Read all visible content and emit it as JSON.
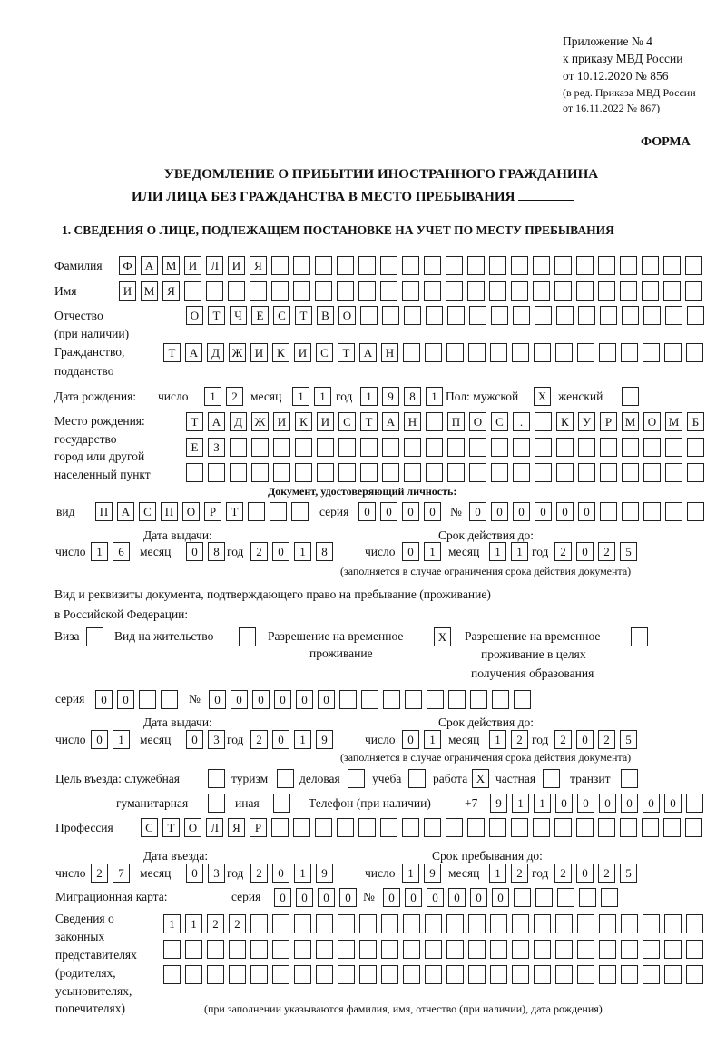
{
  "header": {
    "appendix": "Приложение № 4",
    "order_line1": "к приказу МВД России",
    "order_line2": "от 10.12.2020 № 856",
    "edition_line1": "(в ред. Приказа МВД России",
    "edition_line2": "от 16.11.2022 № 867)",
    "form_label": "ФОРМА",
    "title_line1": "УВЕДОМЛЕНИЕ О ПРИБЫТИИ ИНОСТРАННОГО ГРАЖДАНИНА",
    "title_line2": "ИЛИ ЛИЦА БЕЗ ГРАЖДАНСТВА В МЕСТО ПРЕБЫВАНИЯ",
    "section1": "1. СВЕДЕНИЯ О ЛИЦЕ, ПОДЛЕЖАЩЕМ ПОСТАНОВКЕ НА УЧЕТ ПО МЕСТУ ПРЕБЫВАНИЯ"
  },
  "labels": {
    "surname": "Фамилия",
    "name": "Имя",
    "patronymic": "Отчество",
    "patronymic_note": "(при наличии)",
    "citizenship1": "Гражданство,",
    "citizenship2": "подданство",
    "birth_date": "Дата рождения:",
    "day": "число",
    "month": "месяц",
    "year": "год",
    "sex": "Пол: мужской",
    "female": "женский",
    "birthplace1": "Место рождения:",
    "birthplace2": "государство",
    "birthplace3": "город или другой",
    "birthplace4": "населенный пункт",
    "id_doc": "Документ, удостоверяющий личность:",
    "kind": "вид",
    "series": "серия",
    "number": "№",
    "issue_date": "Дата выдачи:",
    "valid_until": "Срок действия до:",
    "valid_note": "(заполняется в случае ограничения срока действия документа)",
    "stay_doc1": "Вид и реквизиты документа, подтверждающего право на пребывание (проживание)",
    "stay_doc2": "в Российской Федерации:",
    "visa": "Виза",
    "residence": "Вид на жительство",
    "trp1": "Разрешение на временное",
    "trp2": "проживание",
    "trp_edu1": "Разрешение на временное",
    "trp_edu2": "проживание в целях",
    "trp_edu3": "получения образования",
    "purpose": "Цель въезда: служебная",
    "tourism": "туризм",
    "business": "деловая",
    "study": "учеба",
    "work": "работа",
    "private": "частная",
    "transit": "транзит",
    "humanitarian": "гуманитарная",
    "other": "иная",
    "phone": "Телефон (при наличии)",
    "phone_prefix": "+7",
    "profession": "Профессия",
    "entry_date": "Дата въезда:",
    "stay_until": "Срок пребывания до:",
    "migration_card": "Миграционная карта:",
    "reps1": "Сведения о",
    "reps2": "законных",
    "reps3": "представителях",
    "reps4": "(родителях,",
    "reps5": "усыновителях,",
    "reps6": "попечителях)",
    "reps_note": "(при заполнении указываются фамилия, имя, отчество (при наличии), дата рождения)"
  },
  "fields": {
    "surname": "ФАМИЛИЯ",
    "name": "ИМЯ",
    "patronymic": "ОТЧЕСТВО",
    "citizenship": "ТАДЖИКИСТАН",
    "birth_day": "12",
    "birth_month": "11",
    "birth_year": "1981",
    "sex_male": "X",
    "sex_female": "",
    "birthplace_row1": "ТАДЖИКИСТАН ПОС. КУРМОМБ",
    "birthplace_row2": "ЕЗ",
    "birthplace_row3": "",
    "id_kind": "ПАСПОРТ",
    "id_series": "0000",
    "id_number": "000000",
    "id_issue_day": "16",
    "id_issue_month": "08",
    "id_issue_year": "2018",
    "id_valid_day": "01",
    "id_valid_month": "11",
    "id_valid_year": "2025",
    "visa": "",
    "residence_permit": "",
    "temp_residence": "X",
    "temp_residence_edu": "",
    "stay_series": "00",
    "stay_number": "000000",
    "stay_issue_day": "01",
    "stay_issue_month": "03",
    "stay_issue_year": "2019",
    "stay_valid_day": "01",
    "stay_valid_month": "12",
    "stay_valid_year": "2025",
    "purpose_official": "",
    "purpose_tourism": "",
    "purpose_business": "",
    "purpose_study": "",
    "purpose_work": "X",
    "purpose_private": "",
    "purpose_transit": "",
    "purpose_humanitarian": "",
    "purpose_other": "",
    "phone": "911000000",
    "profession": "СТОЛЯР",
    "entry_day": "27",
    "entry_month": "03",
    "entry_year": "2019",
    "stay_until_day": "19",
    "stay_until_month": "12",
    "stay_until_year": "2025",
    "mig_series": "0000",
    "mig_number": "000000",
    "reps_row1": "1122",
    "reps_row2": "",
    "reps_row3": ""
  }
}
